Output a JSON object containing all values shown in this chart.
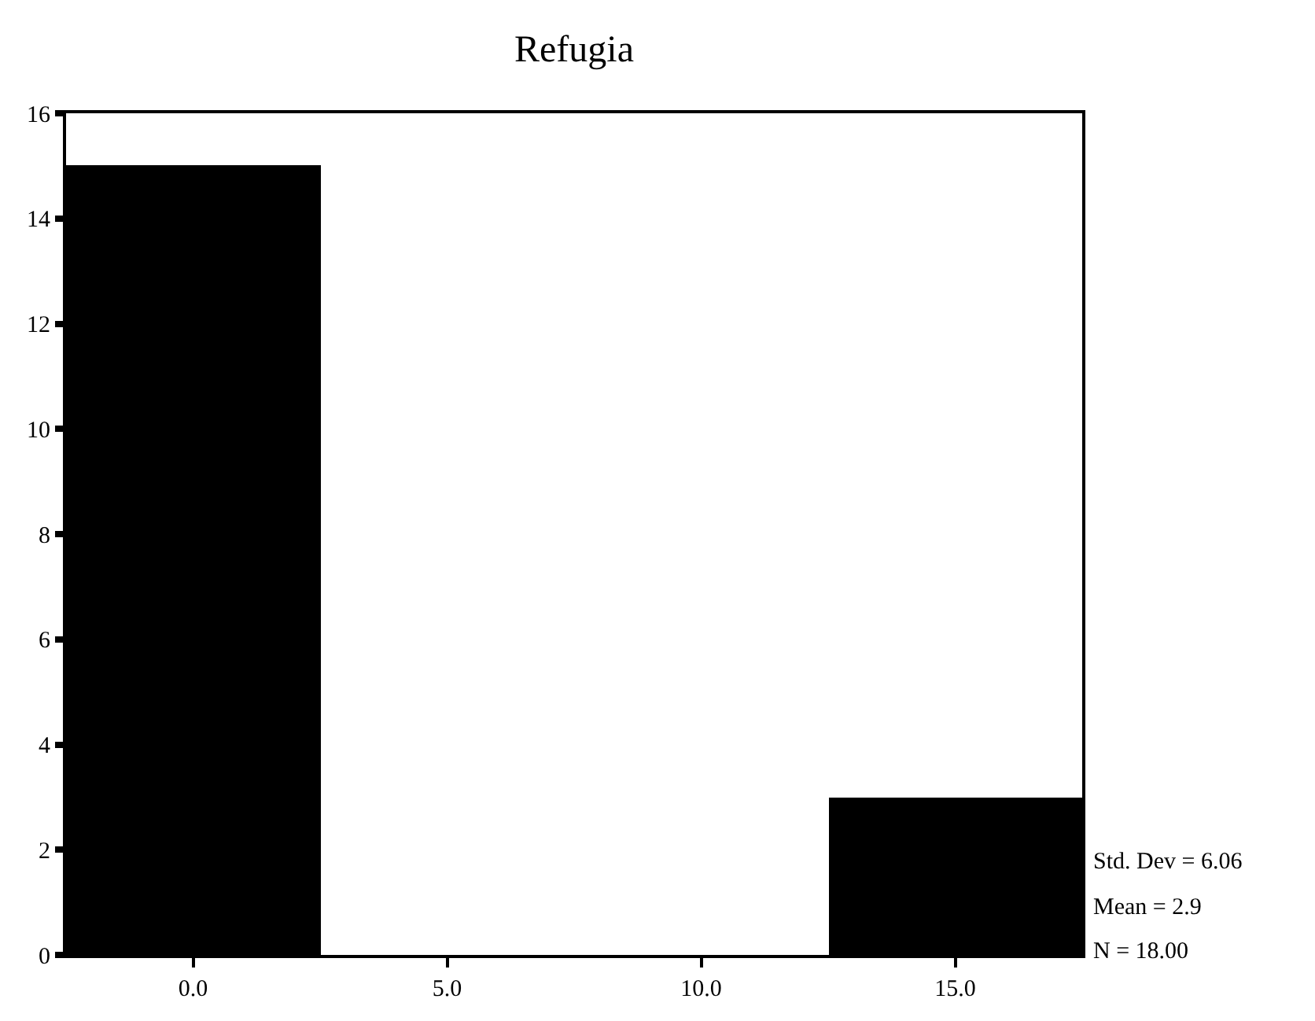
{
  "chart_data": {
    "type": "histogram",
    "title": "Refugia",
    "bins": [
      -2.5,
      2.5,
      7.5,
      12.5,
      17.5
    ],
    "values": [
      15,
      0,
      0,
      3
    ],
    "color": "#000000",
    "xlim": [
      -2.5,
      17.5
    ],
    "xticks": [
      {
        "value": 0,
        "label": "0.0"
      },
      {
        "value": 5,
        "label": "5.0"
      },
      {
        "value": 10,
        "label": "10.0"
      },
      {
        "value": 15,
        "label": "15.0"
      }
    ],
    "ylim": [
      0,
      16
    ],
    "yticks": [
      0,
      2,
      4,
      6,
      8,
      10,
      12,
      14,
      16
    ],
    "annotations": [
      "Std. Dev = 6.06",
      "Mean = 2.9",
      "N = 18.00"
    ]
  }
}
